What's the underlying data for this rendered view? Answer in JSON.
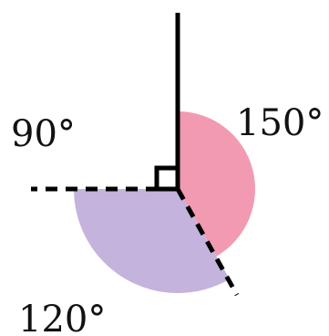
{
  "diagram": {
    "angles": [
      {
        "label": "90°",
        "degrees": 90,
        "marker": "right-angle-square"
      },
      {
        "label": "150°",
        "degrees": 150,
        "color": "#f39ab3"
      },
      {
        "label": "120°",
        "degrees": 120,
        "color": "#c4b3dc"
      }
    ],
    "rays": [
      {
        "direction_deg": 90,
        "style": "solid"
      },
      {
        "direction_deg": 180,
        "style": "dashed"
      },
      {
        "direction_deg": -60,
        "style": "dashed"
      }
    ]
  }
}
